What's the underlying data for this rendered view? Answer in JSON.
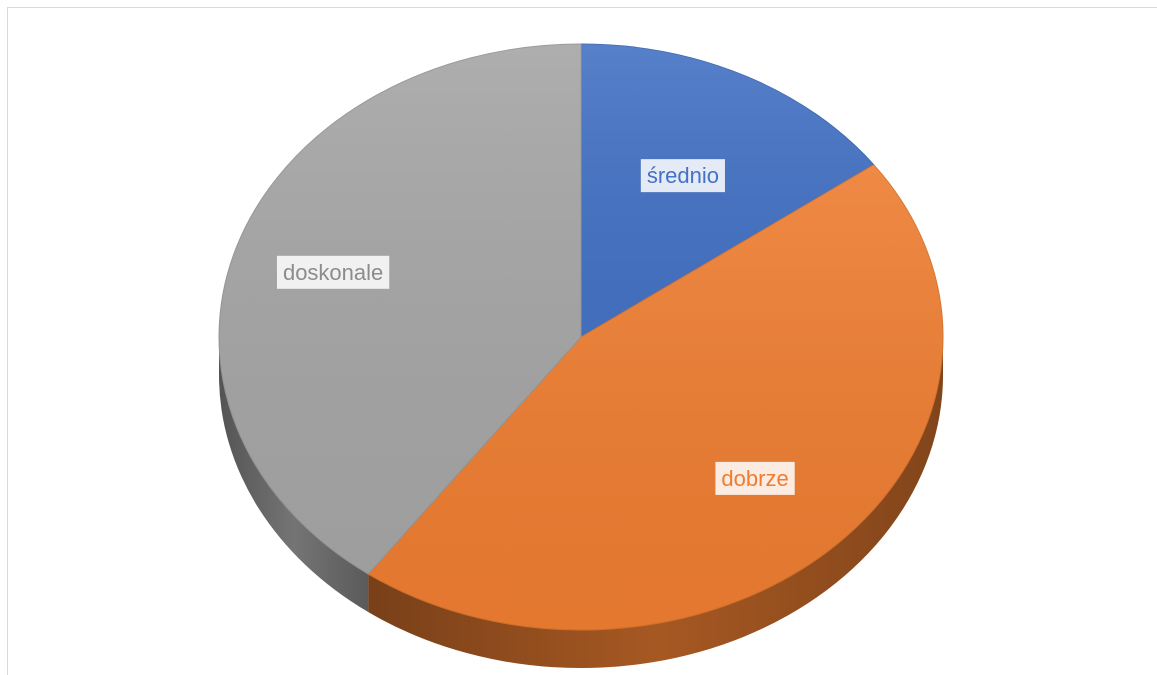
{
  "chart_data": {
    "type": "pie",
    "style": "3d",
    "legend": "none",
    "categories": [
      "średnio",
      "dobrze",
      "doskonale"
    ],
    "values": [
      15,
      45,
      40
    ],
    "data_labels": [
      "średnio",
      "dobrze",
      "doskonale"
    ],
    "colors": [
      "#4472c4",
      "#ed7d31",
      "#a5a5a5"
    ]
  }
}
